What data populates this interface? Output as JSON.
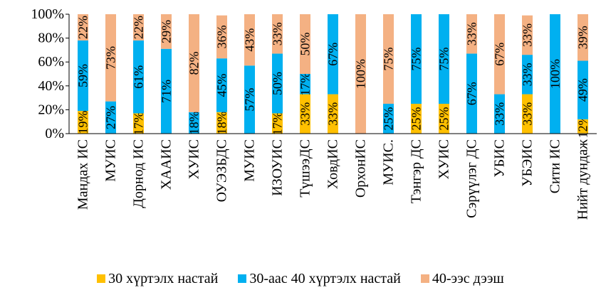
{
  "chart_data": {
    "type": "bar",
    "stacked": true,
    "percent": true,
    "categories": [
      "Мандах ИС",
      "МУИС",
      "Дорнод ИС",
      "ХААИС",
      "ХУИС",
      "ОУЭЗБДС",
      "МУИС",
      "ИЗОУИС",
      "ТүшээДС",
      "ХовдИС",
      "ОрхонИС",
      "МУИС.",
      "Тэнгэр ДС",
      "ХУИС",
      "Сэрүүлэг ДС",
      "УБИС",
      "УБЭИС",
      "Сити ИС",
      "Нийт дундаж"
    ],
    "series": [
      {
        "name": "30 хүртэлх настай",
        "color": "#FFC000",
        "values": [
          19,
          0,
          17,
          0,
          0,
          18,
          0,
          17,
          33,
          33,
          0,
          0,
          25,
          25,
          0,
          0,
          33,
          0,
          12
        ],
        "labels": [
          "19%",
          "",
          "17%",
          "",
          "",
          "18%",
          "",
          "17%",
          "33%",
          "33%",
          "",
          "",
          "25%",
          "25%",
          "",
          "",
          "33%",
          "",
          "12%"
        ]
      },
      {
        "name": "30-аас 40 хүртэлх настай",
        "color": "#00B0F0",
        "values": [
          59,
          27,
          61,
          71,
          18,
          45,
          57,
          50,
          17,
          67,
          0,
          25,
          75,
          75,
          67,
          33,
          33,
          100,
          49
        ],
        "labels": [
          "59%",
          "27%",
          "61%",
          "71%",
          "18%",
          "45%",
          "57%",
          "50%",
          "17%",
          "67%",
          "",
          "25%",
          "75%",
          "75%",
          "67%",
          "33%",
          "33%",
          "100%",
          "49%"
        ]
      },
      {
        "name": "40-ээс дээш",
        "color": "#F4B183",
        "values": [
          22,
          73,
          22,
          29,
          82,
          36,
          43,
          33,
          50,
          0,
          100,
          75,
          0,
          0,
          33,
          67,
          33,
          0,
          39
        ],
        "labels": [
          "22%",
          "73%",
          "22%",
          "29%",
          "82%",
          "36%",
          "43%",
          "33%",
          "50%",
          "",
          "100%",
          "75%",
          "",
          "",
          "33%",
          "67%",
          "33%",
          "",
          "39%"
        ]
      }
    ],
    "ylim": [
      0,
      100
    ],
    "yticks": [
      "0%",
      "20%",
      "40%",
      "60%",
      "80%",
      "100%"
    ],
    "grid": false,
    "legend_position": "bottom"
  }
}
